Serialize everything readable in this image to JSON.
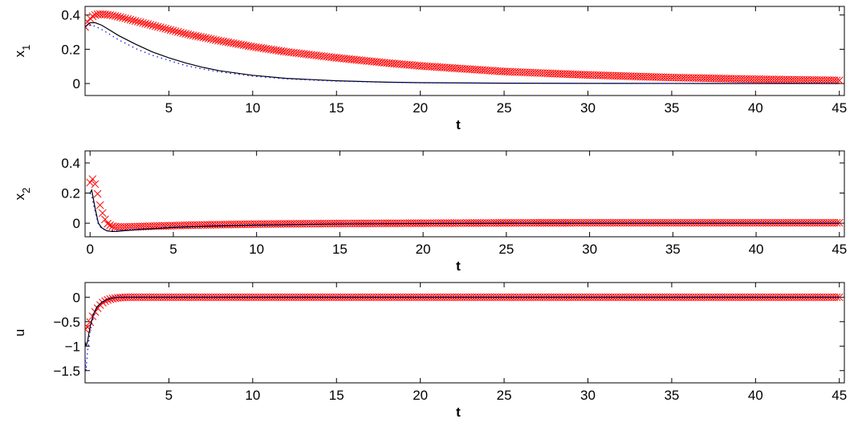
{
  "chart_data": [
    {
      "type": "line",
      "id": "x1",
      "ylabel": "x",
      "ylabel_sub": "1",
      "xlabel": "t",
      "xlim": [
        0,
        45.3
      ],
      "ylim": [
        -0.07,
        0.45
      ],
      "xticks": [
        5,
        10,
        15,
        20,
        25,
        30,
        35,
        40,
        45
      ],
      "yticks": [
        0,
        0.2,
        0.4
      ],
      "ytick_labels": [
        "0",
        "0.2",
        "0.4"
      ],
      "grid": false,
      "series": [
        {
          "style": "red-x-markers",
          "color": "#ff0000",
          "x": [
            0,
            0.2,
            0.4,
            0.6,
            0.8,
            1.0,
            1.5,
            2,
            3,
            4,
            5,
            6,
            8,
            10,
            12,
            15,
            18,
            20,
            25,
            30,
            35,
            40,
            45
          ],
          "y": [
            0.33,
            0.37,
            0.39,
            0.4,
            0.405,
            0.405,
            0.4,
            0.39,
            0.365,
            0.34,
            0.315,
            0.29,
            0.25,
            0.215,
            0.185,
            0.15,
            0.12,
            0.103,
            0.07,
            0.05,
            0.035,
            0.025,
            0.018
          ]
        },
        {
          "style": "black-solid",
          "color": "#000000",
          "x": [
            0,
            0.3,
            0.6,
            1.0,
            1.5,
            2,
            3,
            4,
            5,
            6,
            7,
            8,
            10,
            12,
            15,
            18,
            20,
            25,
            30,
            35,
            40,
            45
          ],
          "y": [
            0.33,
            0.355,
            0.355,
            0.34,
            0.31,
            0.28,
            0.23,
            0.185,
            0.15,
            0.12,
            0.095,
            0.075,
            0.048,
            0.03,
            0.016,
            0.008,
            0.005,
            0.002,
            0.001,
            0.0005,
            0.0002,
            0.0001
          ]
        },
        {
          "style": "blue-dotted",
          "color": "#0000ff",
          "x": [
            0,
            0.3,
            0.6,
            1.0,
            1.5,
            2,
            3,
            4,
            5,
            6,
            7,
            8,
            10,
            12,
            15,
            18,
            20,
            25,
            30,
            35,
            40,
            45
          ],
          "y": [
            0.33,
            0.34,
            0.335,
            0.315,
            0.285,
            0.255,
            0.205,
            0.165,
            0.135,
            0.105,
            0.085,
            0.068,
            0.043,
            0.027,
            0.014,
            0.007,
            0.004,
            0.0015,
            0.0005,
            0.0002,
            0.0001,
            0.0
          ]
        }
      ]
    },
    {
      "type": "line",
      "id": "x2",
      "ylabel": "x",
      "ylabel_sub": "2",
      "xlabel": "t",
      "xlim": [
        -0.3,
        45.3
      ],
      "ylim": [
        -0.09,
        0.48
      ],
      "xticks": [
        0,
        5,
        10,
        15,
        20,
        25,
        30,
        35,
        40,
        45
      ],
      "yticks": [
        0,
        0.2,
        0.4
      ],
      "ytick_labels": [
        "0",
        "0.2",
        "0.4"
      ],
      "grid": false,
      "series": [
        {
          "style": "red-x-markers",
          "color": "#ff0000",
          "x": [
            0,
            0.2,
            0.4,
            0.6,
            0.8,
            1.0,
            1.3,
            1.6,
            2,
            2.5,
            3,
            4,
            5,
            6,
            8,
            10,
            12,
            15,
            20,
            25,
            30,
            35,
            40,
            45
          ],
          "y": [
            0.27,
            0.3,
            0.22,
            0.12,
            0.05,
            0.0,
            -0.02,
            -0.025,
            -0.025,
            -0.024,
            -0.022,
            -0.019,
            -0.016,
            -0.013,
            -0.009,
            -0.006,
            -0.004,
            -0.002,
            0.0,
            0.002,
            0.003,
            0.003,
            0.003,
            0.003
          ]
        },
        {
          "style": "black-solid",
          "color": "#000000",
          "x": [
            0,
            0.1,
            0.3,
            0.5,
            0.7,
            1.0,
            1.3,
            1.6,
            2,
            3,
            4,
            5,
            7,
            10,
            15,
            20,
            25,
            30,
            45
          ],
          "y": [
            0.2,
            0.22,
            0.1,
            0.0,
            -0.03,
            -0.05,
            -0.055,
            -0.055,
            -0.05,
            -0.042,
            -0.035,
            -0.028,
            -0.02,
            -0.012,
            -0.005,
            -0.002,
            0.0,
            0.0,
            0.0
          ]
        },
        {
          "style": "blue-dotted",
          "color": "#0000ff",
          "x": [
            0,
            0.1,
            0.3,
            0.5,
            0.7,
            1.0,
            1.3,
            1.6,
            2,
            3,
            4,
            5,
            7,
            10,
            15,
            20,
            25,
            30,
            45
          ],
          "y": [
            0.2,
            0.18,
            0.08,
            -0.01,
            -0.035,
            -0.05,
            -0.05,
            -0.048,
            -0.045,
            -0.038,
            -0.03,
            -0.024,
            -0.017,
            -0.01,
            -0.004,
            -0.0015,
            0.0,
            0.0,
            0.0
          ]
        }
      ]
    },
    {
      "type": "line",
      "id": "u",
      "ylabel": "u",
      "ylabel_sub": "",
      "xlabel": "t",
      "xlim": [
        0,
        45.3
      ],
      "ylim": [
        -1.75,
        0.3
      ],
      "xticks": [
        5,
        10,
        15,
        20,
        25,
        30,
        35,
        40,
        45
      ],
      "yticks": [
        0,
        -0.5,
        -1,
        -1.5
      ],
      "ytick_labels": [
        "0",
        "−0.5",
        "−1",
        "−1.5"
      ],
      "grid": false,
      "series": [
        {
          "style": "red-x-markers",
          "color": "#ff0000",
          "x": [
            0,
            0.2,
            0.4,
            0.6,
            0.8,
            1.0,
            1.3,
            1.6,
            2,
            2.5,
            3,
            4,
            5,
            10,
            15,
            20,
            25,
            30,
            35,
            40,
            45
          ],
          "y": [
            -0.65,
            -0.6,
            -0.42,
            -0.3,
            -0.2,
            -0.12,
            -0.06,
            -0.03,
            -0.01,
            0.0,
            0.0,
            0.0,
            0.0,
            0.0,
            0.0,
            0.0,
            0.0,
            0.0,
            0.0,
            0.0,
            0.0
          ]
        },
        {
          "style": "black-solid",
          "color": "#000000",
          "x": [
            0,
            0.05,
            0.15,
            0.3,
            0.5,
            0.7,
            1.0,
            1.3,
            1.6,
            2,
            3,
            5,
            10,
            45
          ],
          "y": [
            -0.9,
            -1.0,
            -0.9,
            -0.6,
            -0.35,
            -0.2,
            -0.1,
            -0.05,
            -0.02,
            0.0,
            0.0,
            0.0,
            0.0,
            0.0
          ]
        },
        {
          "style": "blue-dotted",
          "color": "#0000ff",
          "x": [
            0,
            0.05,
            0.15,
            0.3,
            0.5,
            0.7,
            1.0,
            1.3,
            1.6,
            2,
            3,
            5,
            10,
            45
          ],
          "y": [
            -1.2,
            -1.5,
            -1.1,
            -0.7,
            -0.4,
            -0.22,
            -0.1,
            -0.05,
            -0.02,
            0.0,
            0.0,
            0.0,
            0.0,
            0.0
          ]
        }
      ]
    }
  ]
}
